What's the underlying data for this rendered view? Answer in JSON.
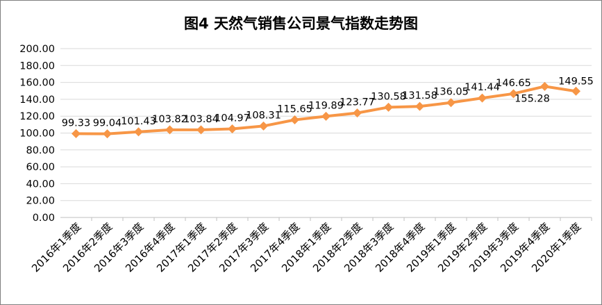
{
  "chart_data": {
    "type": "line",
    "title": "图4  天然气销售公司景气指数走势图",
    "xlabel": "",
    "ylabel": "",
    "ylim": [
      0,
      200
    ],
    "y_ticks": [
      "0.00",
      "20.00",
      "40.00",
      "60.00",
      "80.00",
      "100.00",
      "120.00",
      "140.00",
      "160.00",
      "180.00",
      "200.00"
    ],
    "grid": true,
    "legend": "none",
    "categories": [
      "2016年1季度",
      "2016年2季度",
      "2016年3季度",
      "2016年4季度",
      "2017年1季度",
      "2017年2季度",
      "2017年3季度",
      "2017年4季度",
      "2018年1季度",
      "2018年2季度",
      "2018年3季度",
      "2018年4季度",
      "2019年1季度",
      "2019年2季度",
      "2019年3季度",
      "2019年4季度",
      "2020年1季度"
    ],
    "series": [
      {
        "values": [
          99.33,
          99.04,
          101.43,
          103.82,
          103.84,
          104.97,
          108.31,
          115.65,
          119.89,
          123.77,
          130.58,
          131.58,
          136.05,
          141.44,
          146.65,
          155.28,
          149.55
        ],
        "labels": [
          "99.33",
          "99.04",
          "101.43",
          "103.82",
          "103.84",
          "104.97",
          "108.31",
          "115.65",
          "119.89",
          "123.77",
          "130.58",
          "131.58",
          "136.05",
          "141.44",
          "146.65",
          "155.28",
          "149.55"
        ],
        "color": "#f79646"
      }
    ]
  }
}
